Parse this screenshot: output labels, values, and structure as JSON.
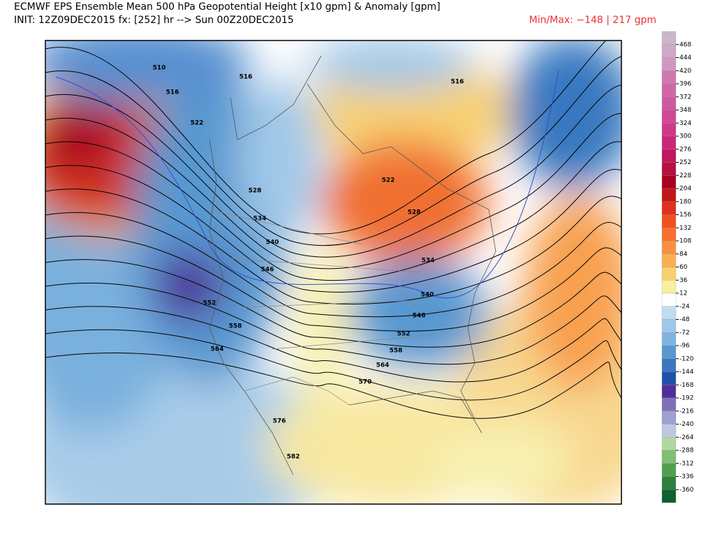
{
  "header": {
    "title": "ECMWF EPS Ensemble Mean 500 hPa Geopotential Height [x10 gpm] & Anomaly [gpm]",
    "subtitle": "INIT: 12Z09DEC2015 fx: [252] hr --> Sun 00Z20DEC2015",
    "minmax": "Min/Max:  −148 |  217 gpm"
  },
  "contour_labels": [
    510,
    516,
    516,
    522,
    528,
    534,
    540,
    546,
    552,
    558,
    564,
    570,
    576,
    582,
    516,
    522,
    528,
    534,
    540,
    546,
    552,
    558,
    564
  ],
  "colorbar": {
    "levels": [
      468,
      444,
      420,
      396,
      372,
      348,
      324,
      300,
      276,
      252,
      228,
      204,
      180,
      156,
      132,
      108,
      84,
      60,
      36,
      12,
      -24,
      -48,
      -72,
      -96,
      -120,
      -144,
      -168,
      -192,
      -216,
      -240,
      -264,
      -288,
      -312,
      -336,
      -360
    ]
  }
}
